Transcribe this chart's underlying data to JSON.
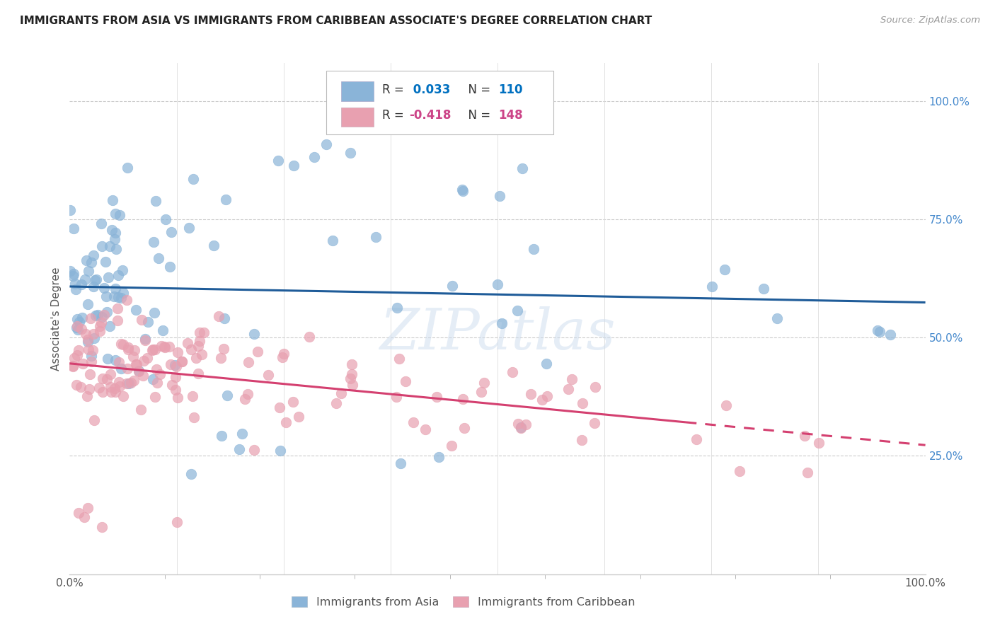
{
  "title": "IMMIGRANTS FROM ASIA VS IMMIGRANTS FROM CARIBBEAN ASSOCIATE'S DEGREE CORRELATION CHART",
  "source": "Source: ZipAtlas.com",
  "ylabel": "Associate's Degree",
  "xlim": [
    0.0,
    1.0
  ],
  "ylim": [
    0.0,
    1.08
  ],
  "color_asia": "#8ab4d8",
  "color_carib": "#e8a0b0",
  "color_line_asia": "#1f5c99",
  "color_line_carib": "#d44070",
  "watermark": "ZIPatlas",
  "r_asia": 0.033,
  "n_asia": 110,
  "r_carib": -0.418,
  "n_carib": 148,
  "r_asia_str": "0.033",
  "r_carib_str": "-0.418",
  "color_r_asia": "#0070c0",
  "color_r_carib": "#cc4488",
  "color_n_asia": "#0070c0",
  "color_n_carib": "#cc4488"
}
